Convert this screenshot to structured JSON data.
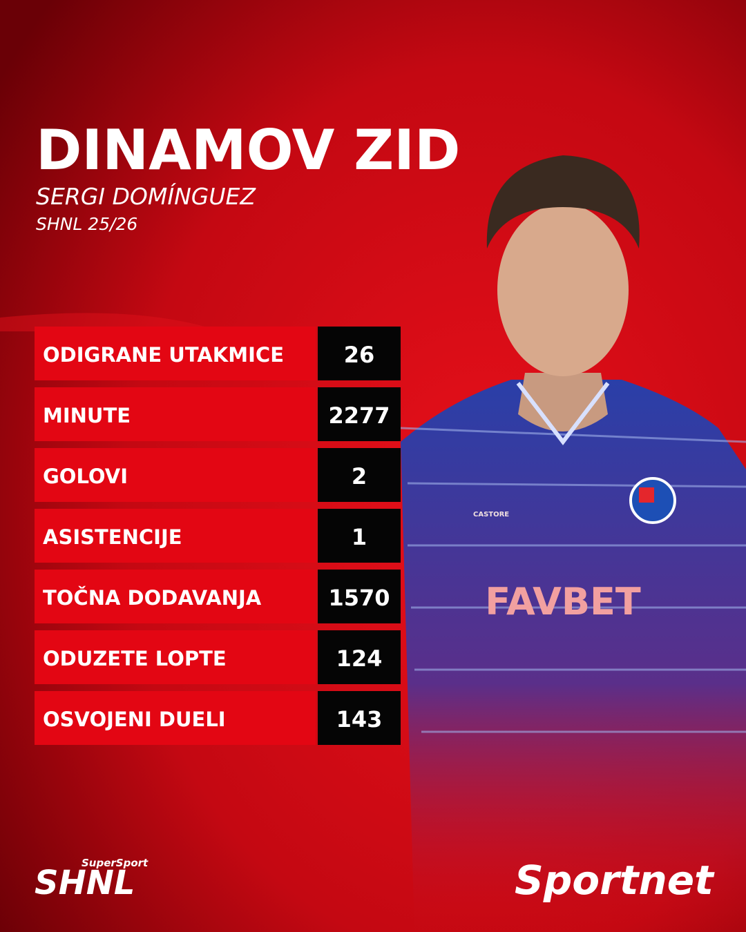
{
  "header": {
    "title": "DINAMOV ZID",
    "player": "SERGI DOMÍNGUEZ",
    "season": "SHNL 25/26"
  },
  "stats": [
    {
      "label": "ODIGRANE UTAKMICE",
      "value": 26
    },
    {
      "label": "MINUTE",
      "value": 2277
    },
    {
      "label": "GOLOVI",
      "value": 2
    },
    {
      "label": "ASISTENCIJE",
      "value": 1
    },
    {
      "label": "TOČNA DODAVANJA",
      "value": 1570
    },
    {
      "label": "ODUZETE LOPTE",
      "value": 124
    },
    {
      "label": "OSVOJENI DUELI",
      "value": 143
    }
  ],
  "photo": {
    "kit_brand": "CASTORE",
    "sponsor": "FAVBET"
  },
  "logos": {
    "league_sponsor": "SuperSport",
    "league": "SHNL",
    "publisher": "Sportnet"
  }
}
